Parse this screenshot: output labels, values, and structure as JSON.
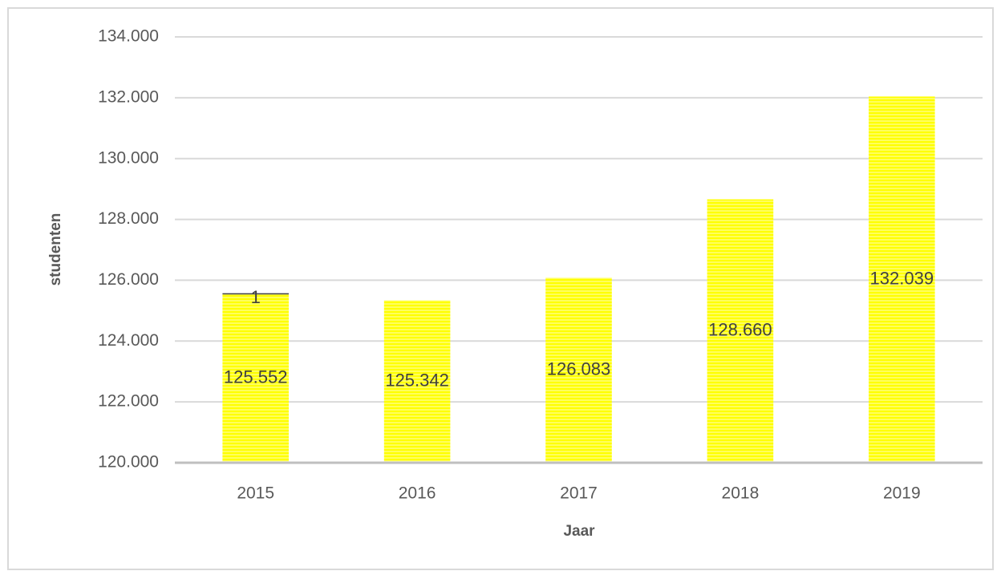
{
  "chart_data": {
    "type": "bar",
    "x_label": "Jaar",
    "y_label": "studenten",
    "categories": [
      "2015",
      "2016",
      "2017",
      "2018",
      "2019"
    ],
    "values": [
      125552,
      125342,
      126083,
      128660,
      132039
    ],
    "value_labels": [
      "125.552",
      "125.342",
      "126.083",
      "128.660",
      "132.039"
    ],
    "annotation": "1",
    "color": "#ffff00",
    "ylim": [
      120000,
      134000
    ],
    "yticks": [
      {
        "value": 120000,
        "label": "120.000"
      },
      {
        "value": 122000,
        "label": "122.000"
      },
      {
        "value": 124000,
        "label": "124.000"
      },
      {
        "value": 126000,
        "label": "126.000"
      },
      {
        "value": 128000,
        "label": "128.000"
      },
      {
        "value": 130000,
        "label": "130.000"
      },
      {
        "value": 132000,
        "label": "132.000"
      },
      {
        "value": 134000,
        "label": "134.000"
      }
    ],
    "grid": true
  }
}
